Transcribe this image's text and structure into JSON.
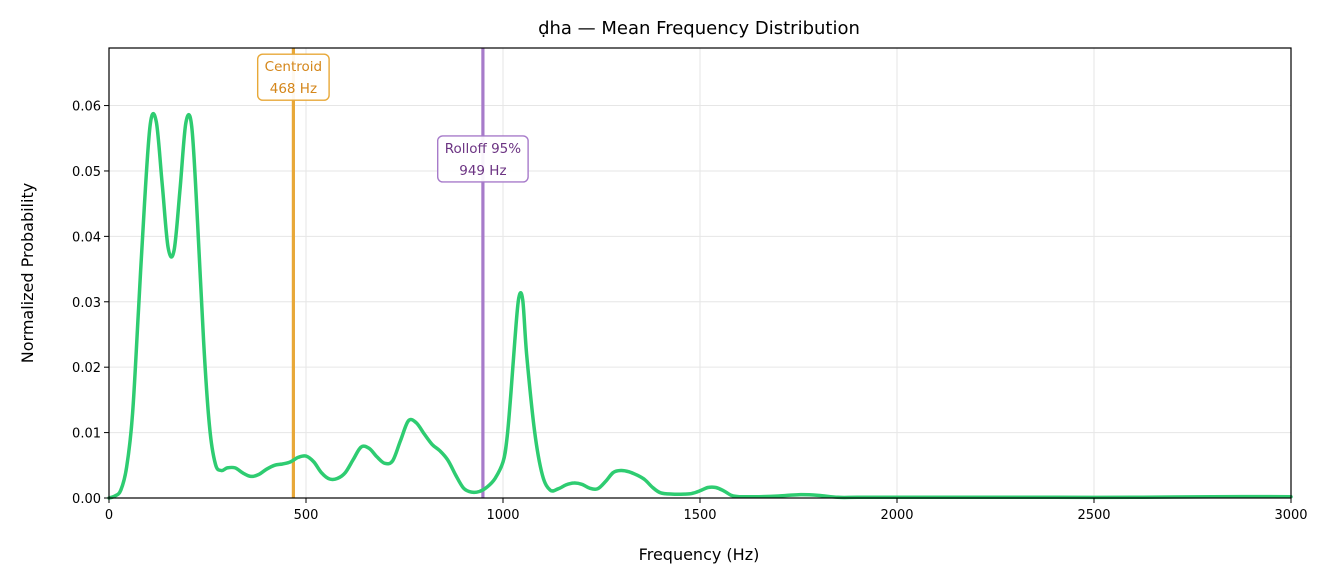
{
  "chart_data": {
    "type": "line",
    "title": "ḍha  —  Mean Frequency Distribution",
    "xlabel": "Frequency (Hz)",
    "ylabel": "Normalized Probability",
    "xlim": [
      0,
      3000
    ],
    "ylim": [
      0,
      0.0688
    ],
    "xticks": [
      0,
      500,
      1000,
      1500,
      2000,
      2500,
      3000
    ],
    "xtick_labels": [
      "0",
      "500",
      "1000",
      "1500",
      "2000",
      "2500",
      "3000"
    ],
    "yticks": [
      0,
      0.01,
      0.02,
      0.03,
      0.04,
      0.05,
      0.06
    ],
    "ytick_labels": [
      "0.00",
      "0.01",
      "0.02",
      "0.03",
      "0.04",
      "0.05",
      "0.06"
    ],
    "grid": true,
    "colors": {
      "line": "#2ecc71",
      "centroid": "#e8a838",
      "rolloff": "#a77bca",
      "centroid_text": "#d4861a",
      "rolloff_text": "#6c3483"
    },
    "series": [
      {
        "x": [
          0,
          15,
          30,
          45,
          60,
          75,
          90,
          105,
          120,
          135,
          150,
          165,
          180,
          195,
          210,
          225,
          240,
          255,
          270,
          285,
          300,
          320,
          340,
          360,
          380,
          400,
          420,
          440,
          460,
          480,
          500,
          520,
          540,
          560,
          580,
          600,
          620,
          640,
          660,
          680,
          700,
          720,
          740,
          760,
          780,
          800,
          820,
          840,
          860,
          880,
          900,
          920,
          940,
          960,
          980,
          1000,
          1010,
          1020,
          1030,
          1040,
          1050,
          1060,
          1080,
          1100,
          1120,
          1140,
          1160,
          1180,
          1200,
          1220,
          1240,
          1260,
          1280,
          1300,
          1320,
          1340,
          1360,
          1380,
          1400,
          1430,
          1460,
          1480,
          1500,
          1520,
          1540,
          1560,
          1580,
          1600,
          1650,
          1700,
          1750,
          1800,
          1850,
          1900,
          2000,
          2200,
          2400,
          2600,
          2800,
          3000
        ],
        "y": [
          0.0,
          0.0003,
          0.0012,
          0.0048,
          0.013,
          0.029,
          0.045,
          0.0573,
          0.0575,
          0.048,
          0.0383,
          0.0378,
          0.047,
          0.0573,
          0.0568,
          0.042,
          0.024,
          0.011,
          0.0052,
          0.0042,
          0.0046,
          0.0046,
          0.0038,
          0.0033,
          0.0036,
          0.0044,
          0.005,
          0.0052,
          0.0055,
          0.0062,
          0.0064,
          0.0055,
          0.0038,
          0.0029,
          0.003,
          0.0039,
          0.0059,
          0.0078,
          0.0076,
          0.0063,
          0.0053,
          0.0057,
          0.0088,
          0.0118,
          0.0115,
          0.0098,
          0.0082,
          0.0072,
          0.0058,
          0.0035,
          0.0015,
          0.0009,
          0.001,
          0.0017,
          0.003,
          0.0055,
          0.009,
          0.016,
          0.024,
          0.0306,
          0.0303,
          0.022,
          0.0103,
          0.0035,
          0.0012,
          0.0014,
          0.002,
          0.0023,
          0.0021,
          0.0015,
          0.0014,
          0.0025,
          0.0039,
          0.0042,
          0.004,
          0.0035,
          0.0028,
          0.0016,
          0.0008,
          0.0006,
          0.0006,
          0.0007,
          0.0011,
          0.0016,
          0.0016,
          0.0011,
          0.0004,
          0.0002,
          0.0002,
          0.0003,
          0.0005,
          0.0004,
          0.0001,
          0.0001,
          0.0001,
          0.0001,
          0.0001,
          0.0001,
          0.0002,
          0.0002
        ]
      }
    ],
    "annotations": [
      {
        "name": "centroid",
        "x": 468,
        "label_line1": "Centroid",
        "label_line2": "468 Hz",
        "label_y": 0.0648
      },
      {
        "name": "rolloff",
        "x": 949,
        "label_line1": "Rolloff 95%",
        "label_line2": "949 Hz",
        "label_y": 0.0523
      }
    ]
  }
}
